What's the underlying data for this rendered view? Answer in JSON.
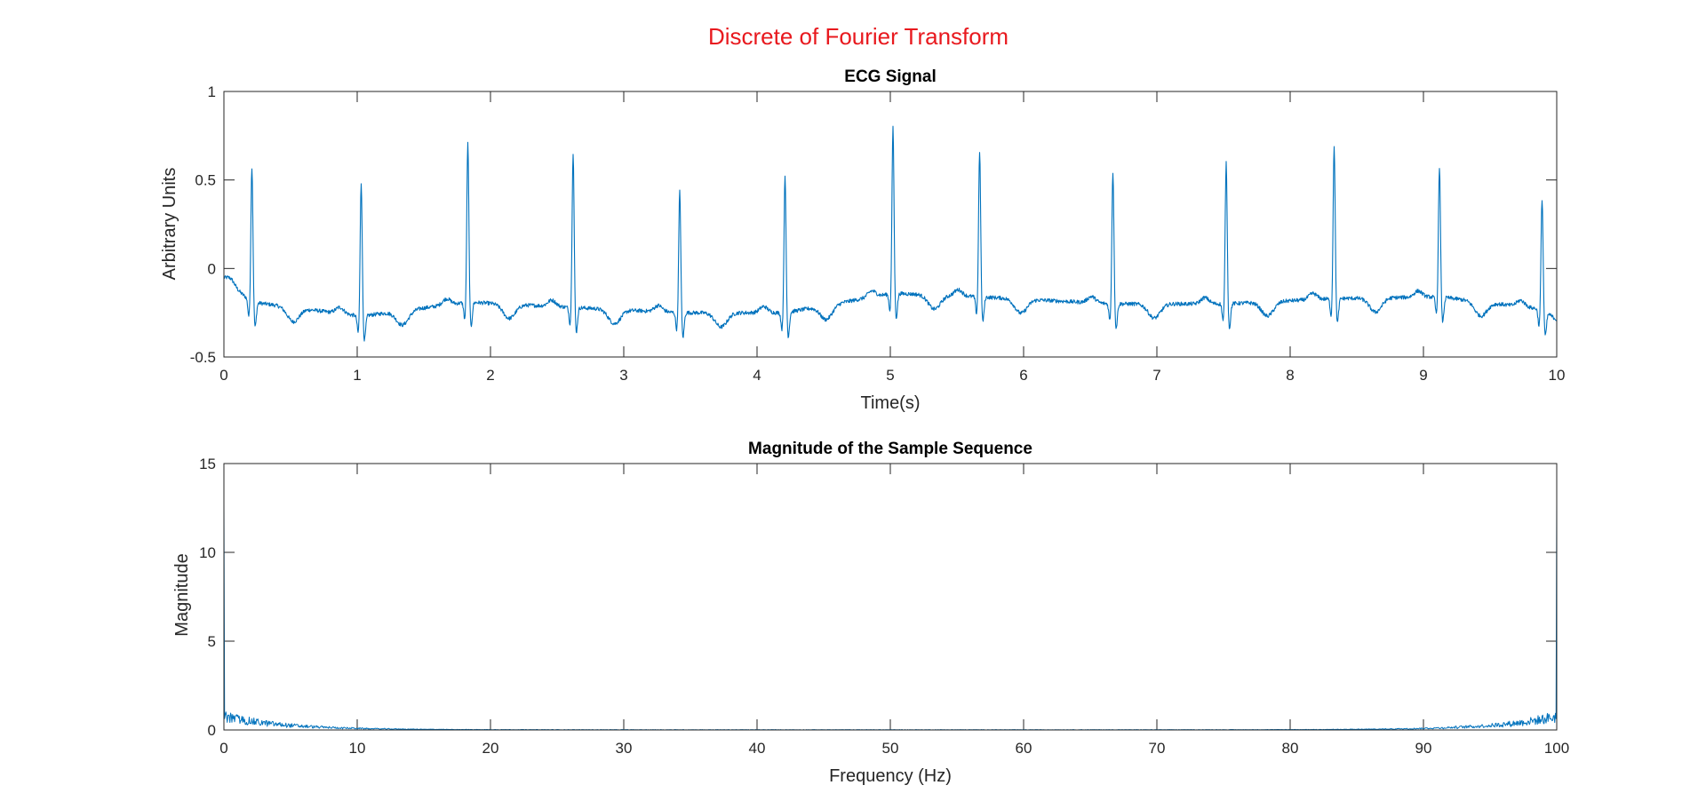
{
  "figure": {
    "title": "Discrete of Fourier Transform",
    "title_color": "#e8191e"
  },
  "colors": {
    "series": "#0072bd",
    "axes": "#262626"
  },
  "chart_data": [
    {
      "type": "line",
      "title": "ECG Signal",
      "xlabel": "Time(s)",
      "ylabel": "Arbitrary Units",
      "xlim": [
        0,
        10
      ],
      "ylim": [
        -0.5,
        1
      ],
      "xticks": [
        "0",
        "1",
        "2",
        "3",
        "4",
        "5",
        "6",
        "7",
        "8",
        "9",
        "10"
      ],
      "yticks": [
        "-0.5",
        "0",
        "0.5",
        "1"
      ],
      "grid": false,
      "series": [
        {
          "color": "#0072bd",
          "baseline_start": -0.06,
          "beats": [
            {
              "t": 0.21,
              "peak": 0.58,
              "baseline": -0.19
            },
            {
              "t": 1.03,
              "peak": 0.49,
              "baseline": -0.27
            },
            {
              "t": 1.83,
              "peak": 0.71,
              "baseline": -0.19
            },
            {
              "t": 2.62,
              "peak": 0.66,
              "baseline": -0.22
            },
            {
              "t": 3.42,
              "peak": 0.44,
              "baseline": -0.25
            },
            {
              "t": 4.21,
              "peak": 0.52,
              "baseline": -0.25
            },
            {
              "t": 5.02,
              "peak": 0.8,
              "baseline": -0.14
            },
            {
              "t": 5.67,
              "peak": 0.67,
              "baseline": -0.16
            },
            {
              "t": 6.67,
              "peak": 0.55,
              "baseline": -0.2
            },
            {
              "t": 7.52,
              "peak": 0.6,
              "baseline": -0.2
            },
            {
              "t": 8.33,
              "peak": 0.7,
              "baseline": -0.17
            },
            {
              "t": 9.12,
              "peak": 0.58,
              "baseline": -0.16
            },
            {
              "t": 9.89,
              "peak": 0.4,
              "baseline": -0.23
            }
          ],
          "baseline_end": -0.29
        }
      ]
    },
    {
      "type": "line",
      "title": "Magnitude of the Sample Sequence",
      "xlabel": "Frequency (Hz)",
      "ylabel": "Magnitude",
      "xlim": [
        0,
        100
      ],
      "ylim": [
        0,
        15
      ],
      "xticks": [
        "0",
        "10",
        "20",
        "30",
        "40",
        "50",
        "60",
        "70",
        "80",
        "90",
        "100"
      ],
      "yticks": [
        "0",
        "5",
        "10",
        "15"
      ],
      "grid": false,
      "series": [
        {
          "color": "#0072bd",
          "dc_peak": 12.8,
          "low_band_max": 1.1,
          "low_band_end_hz": 10,
          "mirror": true
        }
      ]
    }
  ]
}
